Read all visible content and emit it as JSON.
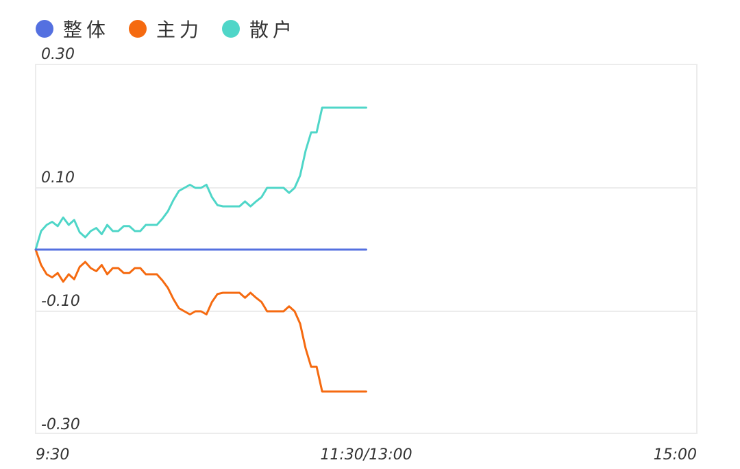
{
  "legend": [
    {
      "name": "整体",
      "color": "#5470e0"
    },
    {
      "name": "主力",
      "color": "#f56a10"
    },
    {
      "name": "散户",
      "color": "#4fd6c8"
    }
  ],
  "chart_data": {
    "type": "line",
    "title": "",
    "xlabel": "",
    "ylabel": "",
    "ylim": [
      -0.3,
      0.3
    ],
    "y_ticks": [
      "0.30",
      "0.10",
      "-0.10",
      "-0.30"
    ],
    "y_tick_values": [
      0.3,
      0.1,
      -0.1,
      -0.3
    ],
    "x_ticks": [
      "9:30",
      "11:30/13:00",
      "15:00"
    ],
    "x_range_minutes": [
      0,
      240
    ],
    "x_tick_minutes": [
      0,
      120,
      240
    ],
    "grid": true,
    "legend_position": "top-left",
    "x_minutes": [
      0,
      2,
      4,
      6,
      8,
      10,
      12,
      14,
      16,
      18,
      20,
      22,
      24,
      26,
      28,
      30,
      32,
      34,
      36,
      38,
      40,
      42,
      44,
      46,
      48,
      50,
      52,
      54,
      56,
      58,
      60,
      62,
      64,
      66,
      68,
      70,
      72,
      74,
      76,
      78,
      80,
      82,
      84,
      86,
      88,
      90,
      92,
      94,
      96,
      98,
      100,
      102,
      104,
      106,
      108,
      110,
      112,
      114,
      116,
      118,
      120
    ],
    "series": [
      {
        "name": "整体",
        "color": "#5470e0",
        "values": [
          0,
          0,
          0,
          0,
          0,
          0,
          0,
          0,
          0,
          0,
          0,
          0,
          0,
          0,
          0,
          0,
          0,
          0,
          0,
          0,
          0,
          0,
          0,
          0,
          0,
          0,
          0,
          0,
          0,
          0,
          0,
          0,
          0,
          0,
          0,
          0,
          0,
          0,
          0,
          0,
          0,
          0,
          0,
          0,
          0,
          0,
          0,
          0,
          0,
          0,
          0,
          0,
          0,
          0,
          0,
          0,
          0,
          0,
          0,
          0,
          0
        ]
      },
      {
        "name": "主力",
        "color": "#f56a10",
        "values": [
          0,
          -0.025,
          -0.04,
          -0.045,
          -0.038,
          -0.052,
          -0.04,
          -0.048,
          -0.028,
          -0.02,
          -0.03,
          -0.035,
          -0.025,
          -0.04,
          -0.03,
          -0.03,
          -0.038,
          -0.038,
          -0.03,
          -0.03,
          -0.04,
          -0.04,
          -0.04,
          -0.05,
          -0.062,
          -0.08,
          -0.095,
          -0.1,
          -0.105,
          -0.1,
          -0.1,
          -0.105,
          -0.085,
          -0.072,
          -0.07,
          -0.07,
          -0.07,
          -0.07,
          -0.078,
          -0.07,
          -0.078,
          -0.085,
          -0.1,
          -0.1,
          -0.1,
          -0.1,
          -0.092,
          -0.1,
          -0.12,
          -0.16,
          -0.19,
          -0.19,
          -0.23,
          -0.23,
          -0.23,
          -0.23,
          -0.23,
          -0.23,
          -0.23,
          -0.23,
          -0.23
        ]
      },
      {
        "name": "散户",
        "color": "#4fd6c8",
        "values": [
          0,
          0.03,
          0.04,
          0.045,
          0.038,
          0.052,
          0.04,
          0.048,
          0.028,
          0.02,
          0.03,
          0.035,
          0.025,
          0.04,
          0.03,
          0.03,
          0.038,
          0.038,
          0.03,
          0.03,
          0.04,
          0.04,
          0.04,
          0.05,
          0.062,
          0.08,
          0.095,
          0.1,
          0.105,
          0.1,
          0.1,
          0.105,
          0.085,
          0.072,
          0.07,
          0.07,
          0.07,
          0.07,
          0.078,
          0.07,
          0.078,
          0.085,
          0.1,
          0.1,
          0.1,
          0.1,
          0.092,
          0.1,
          0.12,
          0.16,
          0.19,
          0.19,
          0.23,
          0.23,
          0.23,
          0.23,
          0.23,
          0.23,
          0.23,
          0.23,
          0.23
        ]
      }
    ]
  }
}
